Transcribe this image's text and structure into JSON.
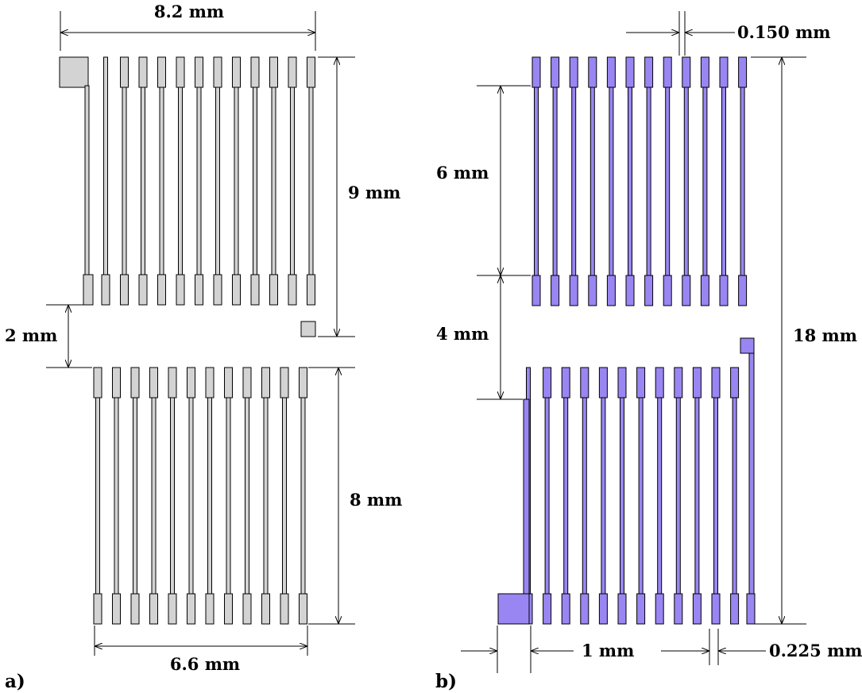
{
  "labels": {
    "a_width": "8.2 mm",
    "a_height_top": "9 mm",
    "a_gap": "2 mm",
    "a_height_bottom": "8 mm",
    "a_bottom_width": "6.6 mm",
    "b_trace_width": "0.150 mm",
    "b_top_length": "6 mm",
    "b_gap": "4 mm",
    "b_total_height": "18 mm",
    "b_pitch": "1 mm",
    "b_spacing": "0.225 mm"
  },
  "panels": {
    "a": "a)",
    "b": "b)"
  },
  "colors": {
    "panel_a_fill": "#d3d3d3",
    "panel_b_fill": "#9a86f2",
    "stroke": "#000000"
  }
}
